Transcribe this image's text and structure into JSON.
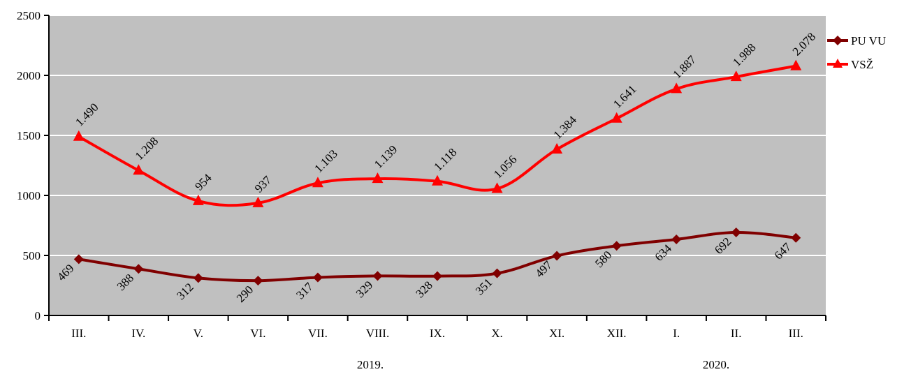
{
  "chart_data": {
    "type": "line",
    "title": "",
    "xlabel": "",
    "ylabel": "",
    "categories": [
      "III.",
      "IV.",
      "V.",
      "VI.",
      "VII.",
      "VIII.",
      "IX.",
      "X.",
      "XI.",
      "XII.",
      "I.",
      "II.",
      "III."
    ],
    "year_labels": [
      "2019.",
      "2020."
    ],
    "ylim": [
      0,
      2500
    ],
    "yticks": [
      0,
      500,
      1000,
      1500,
      2000,
      2500
    ],
    "grid": true,
    "legend_position": "right",
    "series": [
      {
        "name": "PU VU",
        "marker": "diamond",
        "color": "#800000",
        "values": [
          469,
          388,
          312,
          290,
          317,
          329,
          328,
          351,
          497,
          580,
          634,
          692,
          647
        ],
        "labels": [
          "469",
          "388",
          "312",
          "290",
          "317",
          "329",
          "328",
          "351",
          "497",
          "580",
          "634",
          "692",
          "647"
        ]
      },
      {
        "name": "VSŽ",
        "marker": "triangle",
        "color": "#ff0000",
        "values": [
          1490,
          1208,
          954,
          937,
          1103,
          1139,
          1118,
          1056,
          1384,
          1641,
          1887,
          1988,
          2078
        ],
        "labels": [
          "1.490",
          "1.208",
          "954",
          "937",
          "1.103",
          "1.139",
          "1.118",
          "1.056",
          "1.384",
          "1.641",
          "1.887",
          "1.988",
          "2.078"
        ]
      }
    ],
    "colors": {
      "plot_background": "#c0c0c0",
      "gridline": "#ffffff",
      "axis": "#000000"
    }
  }
}
